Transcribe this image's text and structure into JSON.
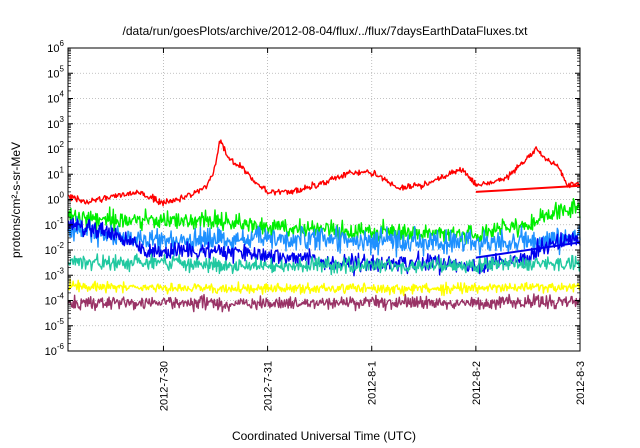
{
  "chart_data": {
    "type": "line",
    "title": "/data/run/goesPlots/archive/2012-08-04/flux/../flux/7daysEarthDataFluxes.txt",
    "xlabel": "Coordinated Universal Time (UTC)",
    "ylabel": "protons/cm²-s-sr-MeV",
    "yscale": "log",
    "ylim_exponents": [
      -6,
      6
    ],
    "y_tick_base": "10",
    "y_ticks": [
      -6,
      -5,
      -4,
      -3,
      -2,
      -1,
      0,
      1,
      2,
      3,
      4,
      5,
      6
    ],
    "xlim": [
      "2012-07-29 02:00",
      "2012-08-03 00:00"
    ],
    "x_ticks": [
      "2012-7-30",
      "2012-7-31",
      "2012-8-1",
      "2012-8-2",
      "2012-8-3"
    ],
    "grid": true,
    "series": [
      {
        "color": "#ff0000",
        "noise": 0.12,
        "points": [
          [
            "2012-07-29 02:00",
            1.3
          ],
          [
            "2012-07-29 06:00",
            0.8
          ],
          [
            "2012-07-29 12:00",
            1.3
          ],
          [
            "2012-07-29 18:00",
            2.0
          ],
          [
            "2012-07-30 00:00",
            0.7
          ],
          [
            "2012-07-30 06:00",
            1.5
          ],
          [
            "2012-07-30 10:00",
            3.0
          ],
          [
            "2012-07-30 12:00",
            20
          ],
          [
            "2012-07-30 13:00",
            250
          ],
          [
            "2012-07-30 15:00",
            40
          ],
          [
            "2012-07-30 18:00",
            20
          ],
          [
            "2012-07-30 21:00",
            5
          ],
          [
            "2012-07-31 00:00",
            2.0
          ],
          [
            "2012-07-31 06:00",
            2.0
          ],
          [
            "2012-07-31 12:00",
            4.0
          ],
          [
            "2012-07-31 18:00",
            10
          ],
          [
            "2012-07-31 22:00",
            13
          ],
          [
            "2012-08-01 02:00",
            8
          ],
          [
            "2012-08-01 06:00",
            3.0
          ],
          [
            "2012-08-01 12:00",
            3.5
          ],
          [
            "2012-08-01 18:00",
            10
          ],
          [
            "2012-08-01 21:00",
            15
          ],
          [
            "2012-08-02 00:00",
            3.5
          ],
          [
            "2012-08-02 06:00",
            6
          ],
          [
            "2012-08-02 10:00",
            20
          ],
          [
            "2012-08-02 14:00",
            100
          ],
          [
            "2012-08-02 16:00",
            40
          ],
          [
            "2012-08-02 19:00",
            20
          ],
          [
            "2012-08-02 21:00",
            4
          ],
          [
            "2012-08-03 00:00",
            4
          ]
        ]
      },
      {
        "color": "#00ee00",
        "noise": 0.35,
        "points": [
          [
            "2012-07-29 02:00",
            0.2
          ],
          [
            "2012-07-29 12:00",
            0.15
          ],
          [
            "2012-07-30 00:00",
            0.15
          ],
          [
            "2012-07-30 12:00",
            0.15
          ],
          [
            "2012-07-31 00:00",
            0.08
          ],
          [
            "2012-07-31 12:00",
            0.06
          ],
          [
            "2012-08-01 00:00",
            0.05
          ],
          [
            "2012-08-01 12:00",
            0.05
          ],
          [
            "2012-08-02 00:00",
            0.04
          ],
          [
            "2012-08-02 12:00",
            0.1
          ],
          [
            "2012-08-02 18:00",
            0.3
          ],
          [
            "2012-08-03 00:00",
            0.6
          ]
        ]
      },
      {
        "color": "#1e90ff",
        "noise": 0.45,
        "points": [
          [
            "2012-07-29 02:00",
            0.06
          ],
          [
            "2012-07-29 12:00",
            0.04
          ],
          [
            "2012-07-30 00:00",
            0.02
          ],
          [
            "2012-07-30 12:00",
            0.03
          ],
          [
            "2012-07-31 00:00",
            0.03
          ],
          [
            "2012-07-31 12:00",
            0.03
          ],
          [
            "2012-08-01 00:00",
            0.02
          ],
          [
            "2012-08-01 12:00",
            0.02
          ],
          [
            "2012-08-02 00:00",
            0.02
          ],
          [
            "2012-08-02 12:00",
            0.02
          ],
          [
            "2012-08-03 00:00",
            0.04
          ]
        ]
      },
      {
        "color": "#0000ee",
        "noise": 0.35,
        "points": [
          [
            "2012-07-29 02:00",
            0.1
          ],
          [
            "2012-07-29 12:00",
            0.05
          ],
          [
            "2012-07-29 20:00",
            0.008
          ],
          [
            "2012-07-30 12:00",
            0.01
          ],
          [
            "2012-07-31 00:00",
            0.006
          ],
          [
            "2012-07-31 12:00",
            0.004
          ],
          [
            "2012-08-01 00:00",
            0.003
          ],
          [
            "2012-08-01 12:00",
            0.003
          ],
          [
            "2012-08-02 00:00",
            0.002
          ],
          [
            "2012-08-02 12:00",
            0.005
          ],
          [
            "2012-08-02 18:00",
            0.02
          ],
          [
            "2012-08-03 00:00",
            0.03
          ]
        ]
      },
      {
        "color": "#20c8a0",
        "noise": 0.3,
        "points": [
          [
            "2012-07-29 02:00",
            0.004
          ],
          [
            "2012-07-29 12:00",
            0.003
          ],
          [
            "2012-07-30 00:00",
            0.003
          ],
          [
            "2012-07-31 00:00",
            0.0025
          ],
          [
            "2012-08-01 00:00",
            0.0025
          ],
          [
            "2012-08-02 00:00",
            0.0025
          ],
          [
            "2012-08-03 00:00",
            0.003
          ]
        ]
      },
      {
        "color": "#ffff00",
        "noise": 0.2,
        "points": [
          [
            "2012-07-29 02:00",
            0.0004
          ],
          [
            "2012-07-30 00:00",
            0.0003
          ],
          [
            "2012-07-31 00:00",
            0.0003
          ],
          [
            "2012-08-01 00:00",
            0.0003
          ],
          [
            "2012-08-02 00:00",
            0.0003
          ],
          [
            "2012-08-03 00:00",
            0.00035
          ]
        ]
      },
      {
        "color": "#993366",
        "noise": 0.25,
        "points": [
          [
            "2012-07-29 02:00",
            8e-05
          ],
          [
            "2012-07-30 00:00",
            8e-05
          ],
          [
            "2012-07-31 00:00",
            8e-05
          ],
          [
            "2012-08-01 00:00",
            8e-05
          ],
          [
            "2012-08-02 00:00",
            8e-05
          ],
          [
            "2012-08-03 00:00",
            0.0001
          ]
        ]
      }
    ],
    "fit_lines": [
      {
        "color": "#ff0000",
        "points": [
          [
            "2012-08-02 00:00",
            2.0
          ],
          [
            "2012-08-03 00:00",
            3.5
          ]
        ]
      },
      {
        "color": "#0000ee",
        "points": [
          [
            "2012-08-02 00:00",
            0.005
          ],
          [
            "2012-08-03 00:00",
            0.02
          ]
        ]
      }
    ]
  }
}
